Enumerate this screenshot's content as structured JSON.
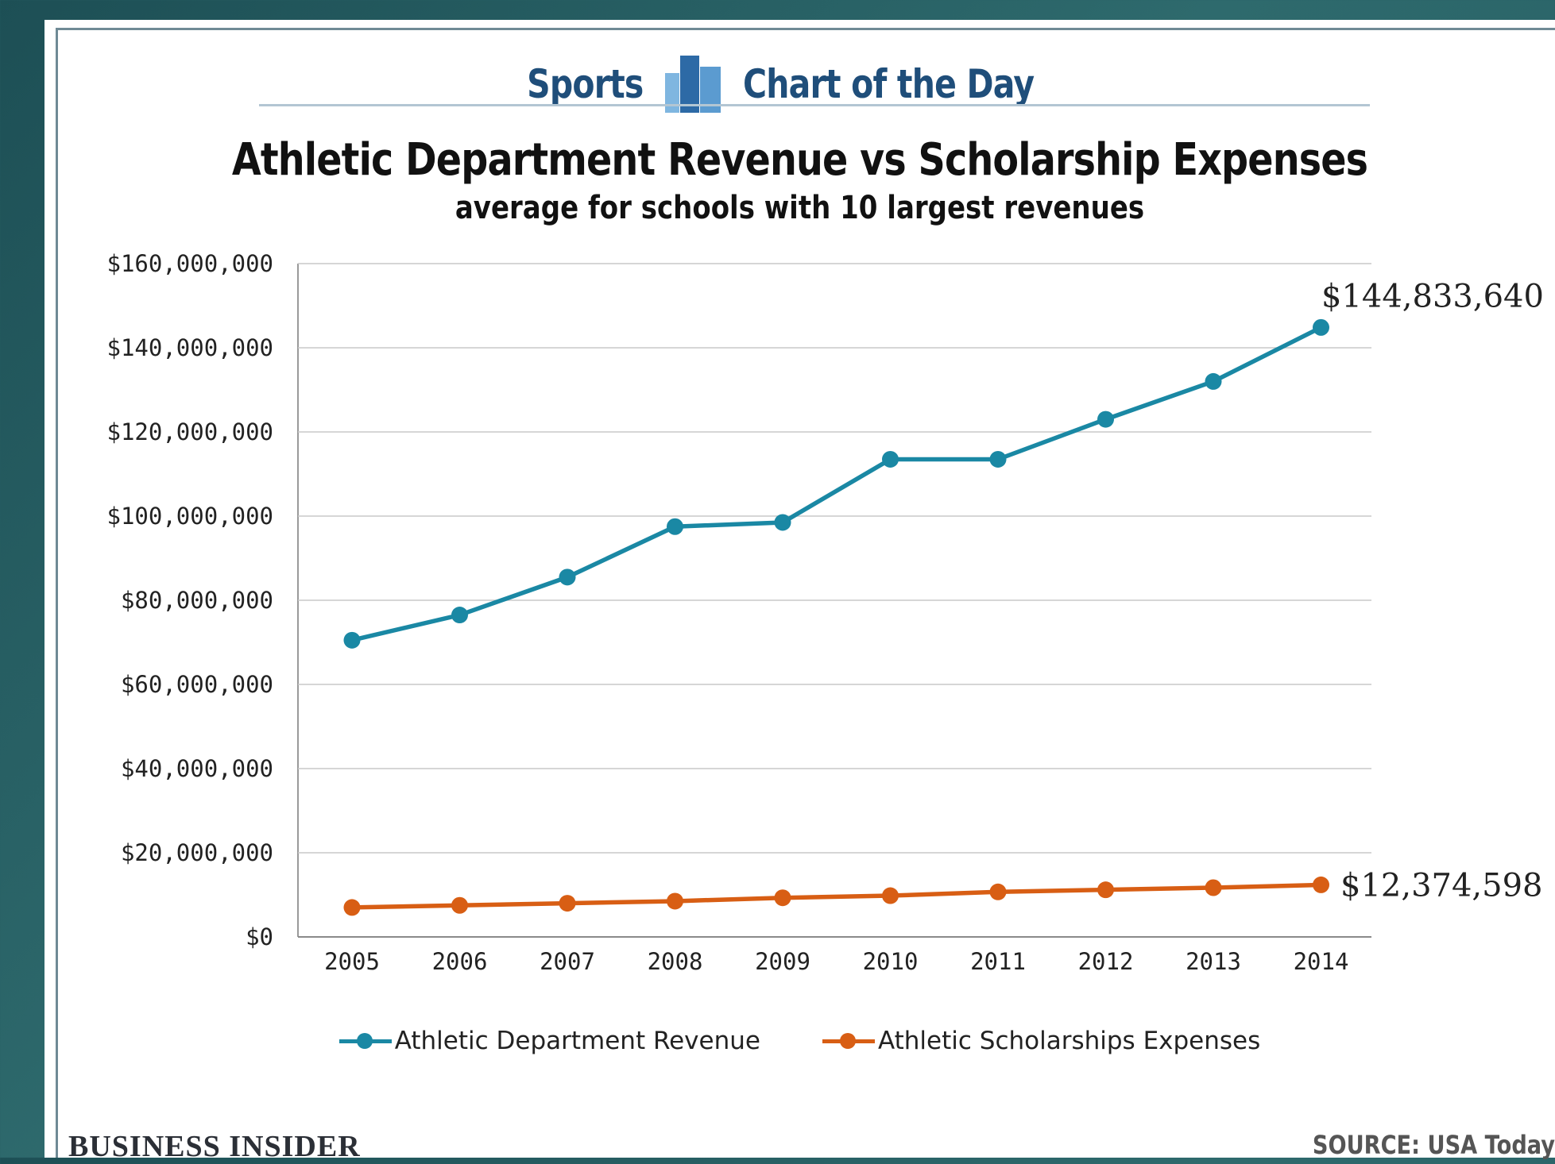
{
  "header": {
    "left_word": "Sports",
    "right_word": "Chart of the Day",
    "logo_icon": "bar-chart-icon"
  },
  "colors": {
    "revenue": "#1a88a4",
    "expenses": "#d85e14",
    "header_text": "#1f4e7a",
    "logo_light": "#7fb6e0",
    "logo_dark": "#2d6aa6"
  },
  "chart_data": {
    "type": "line",
    "title": "Athletic Department Revenue vs Scholarship Expenses",
    "subtitle": "average for schools with 10 largest revenues",
    "categories": [
      "2005",
      "2006",
      "2007",
      "2008",
      "2009",
      "2010",
      "2011",
      "2012",
      "2013",
      "2014"
    ],
    "series": [
      {
        "name": "Athletic Department Revenue",
        "color": "#1a88a4",
        "values": [
          70500000,
          76500000,
          85500000,
          97500000,
          98500000,
          113500000,
          113500000,
          123000000,
          132000000,
          144833640
        ]
      },
      {
        "name": "Athletic Scholarships Expenses",
        "color": "#d85e14",
        "values": [
          7000000,
          7500000,
          8000000,
          8500000,
          9300000,
          9800000,
          10700000,
          11200000,
          11700000,
          12374598
        ]
      }
    ],
    "ylim": [
      0,
      160000000
    ],
    "yticks": [
      0,
      20000000,
      40000000,
      60000000,
      80000000,
      100000000,
      120000000,
      140000000,
      160000000
    ],
    "ytick_labels": [
      "$0",
      "$20,000,000",
      "$40,000,000",
      "$60,000,000",
      "$80,000,000",
      "$100,000,000",
      "$120,000,000",
      "$140,000,000",
      "$160,000,000"
    ],
    "end_labels": [
      "$144,833,640",
      "$12,374,598"
    ],
    "grid": true,
    "legend_position": "bottom"
  },
  "footer": {
    "brand": "BUSINESS INSIDER",
    "source": "SOURCE: USA Today"
  }
}
